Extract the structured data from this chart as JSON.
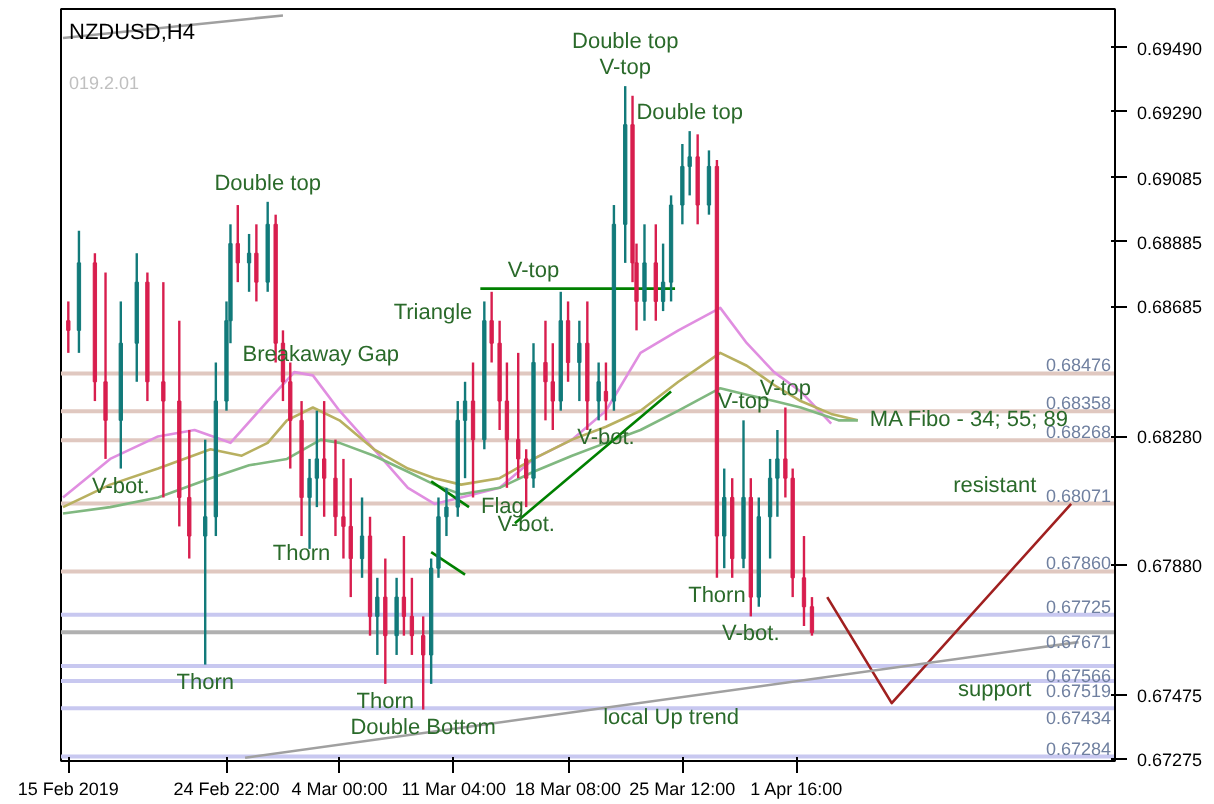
{
  "chart_data": {
    "type": "candlestick",
    "title": "NZDUSD,H4",
    "x": [
      "2019-02-15T00:00",
      "2019-02-15T16:00",
      "2019-02-16T16:00",
      "2019-02-17T08:00",
      "2019-02-18T07:00",
      "2019-02-19T07:00",
      "2019-02-19T23:00",
      "2019-02-20T23:00",
      "2019-02-21T23:00",
      "2019-02-22T14:00",
      "2019-02-23T14:00",
      "2019-02-24T06:00",
      "2019-02-24T22:00",
      "2019-02-25T04:00",
      "2019-02-25T15:00",
      "2019-02-26T08:00",
      "2019-02-26T19:00",
      "2019-02-27T12:00",
      "2019-02-28T00:00",
      "2019-02-28T11:00",
      "2019-02-28T22:00",
      "2019-03-01T15:00",
      "2019-03-02T03:00",
      "2019-03-02T14:00",
      "2019-03-03T01:00",
      "2019-03-03T18:00",
      "2019-03-04T06:00",
      "2019-03-04T17:00",
      "2019-03-05T10:00",
      "2019-03-05T22:00",
      "2019-03-06T09:00",
      "2019-03-06T21:00",
      "2019-03-07T14:00",
      "2019-03-08T01:00",
      "2019-03-08T13:00",
      "2019-03-09T06:00",
      "2019-03-09T18:00",
      "2019-03-10T05:00",
      "2019-03-10T17:00",
      "2019-03-11T10:00",
      "2019-03-11T21:00",
      "2019-03-12T09:00",
      "2019-03-13T02:00",
      "2019-03-13T13:00",
      "2019-03-14T01:00",
      "2019-03-14T12:00",
      "2019-03-15T05:00",
      "2019-03-15T17:00",
      "2019-03-16T04:00",
      "2019-03-16T22:00",
      "2019-03-17T09:00",
      "2019-03-17T21:00",
      "2019-03-18T08:00",
      "2019-03-19T01:00",
      "2019-03-19T13:00",
      "2019-03-20T06:00",
      "2019-03-20T17:00",
      "2019-03-21T05:00",
      "2019-03-21T22:00",
      "2019-03-22T09:00",
      "2019-03-22T15:00",
      "2019-03-23T03:00",
      "2019-03-23T20:00",
      "2019-03-24T07:00",
      "2019-03-24T19:00",
      "2019-03-25T12:00",
      "2019-03-25T23:00",
      "2019-03-26T11:00",
      "2019-03-27T04:00",
      "2019-03-27T16:00",
      "2019-03-28T03:00",
      "2019-03-28T15:00",
      "2019-03-29T08:00",
      "2019-03-29T19:00",
      "2019-03-30T07:00",
      "2019-03-31T00:00",
      "2019-03-31T11:00",
      "2019-03-31T23:00",
      "2019-04-01T10:00",
      "2019-04-02T03:00",
      "2019-04-02T15:00"
    ],
    "ohlc": [
      [
        0.6864,
        0.687,
        0.6854,
        0.6861
      ],
      [
        0.6861,
        0.6892,
        0.6854,
        0.6882
      ],
      [
        0.6882,
        0.6885,
        0.6839,
        0.6845
      ],
      [
        0.6845,
        0.6879,
        0.6821,
        0.6833
      ],
      [
        0.6833,
        0.687,
        0.6818,
        0.6857
      ],
      [
        0.6857,
        0.6885,
        0.6845,
        0.6876
      ],
      [
        0.6876,
        0.6879,
        0.6839,
        0.6845
      ],
      [
        0.6845,
        0.6876,
        0.6809,
        0.6839
      ],
      [
        0.6839,
        0.6864,
        0.68,
        0.6809
      ],
      [
        0.6809,
        0.683,
        0.679,
        0.6797
      ],
      [
        0.6797,
        0.6827,
        0.6757,
        0.6803
      ],
      [
        0.6803,
        0.6851,
        0.6797,
        0.6839
      ],
      [
        0.6839,
        0.687,
        0.6836,
        0.6864
      ],
      [
        0.6864,
        0.6894,
        0.6857,
        0.6888
      ],
      [
        0.6888,
        0.69,
        0.6876,
        0.6882
      ],
      [
        0.6882,
        0.6891,
        0.6873,
        0.6885
      ],
      [
        0.6885,
        0.6894,
        0.687,
        0.6876
      ],
      [
        0.6876,
        0.6901,
        0.6873,
        0.6894
      ],
      [
        0.6894,
        0.6897,
        0.6851,
        0.6857
      ],
      [
        0.6857,
        0.6861,
        0.6839,
        0.6845
      ],
      [
        0.6845,
        0.6851,
        0.6818,
        0.6833
      ],
      [
        0.6833,
        0.6839,
        0.6797,
        0.6809
      ],
      [
        0.6809,
        0.6821,
        0.6793,
        0.6815
      ],
      [
        0.6815,
        0.6836,
        0.6806,
        0.6821
      ],
      [
        0.6821,
        0.6839,
        0.6803,
        0.6815
      ],
      [
        0.6815,
        0.6827,
        0.6797,
        0.6803
      ],
      [
        0.6803,
        0.6821,
        0.679,
        0.68
      ],
      [
        0.68,
        0.6815,
        0.6778,
        0.679
      ],
      [
        0.679,
        0.6809,
        0.6784,
        0.6797
      ],
      [
        0.6797,
        0.6803,
        0.6766,
        0.6772
      ],
      [
        0.6772,
        0.6784,
        0.676,
        0.6778
      ],
      [
        0.6778,
        0.679,
        0.6751,
        0.6766
      ],
      [
        0.6766,
        0.6784,
        0.676,
        0.6778
      ],
      [
        0.6778,
        0.6797,
        0.6766,
        0.6772
      ],
      [
        0.6772,
        0.6784,
        0.676,
        0.6766
      ],
      [
        0.6766,
        0.6772,
        0.6743,
        0.676
      ],
      [
        0.676,
        0.679,
        0.6751,
        0.6787
      ],
      [
        0.6787,
        0.6809,
        0.6784,
        0.6803
      ],
      [
        0.6803,
        0.6812,
        0.6797,
        0.6806
      ],
      [
        0.6806,
        0.6839,
        0.6803,
        0.6833
      ],
      [
        0.6833,
        0.6845,
        0.6815,
        0.6839
      ],
      [
        0.6839,
        0.6851,
        0.6809,
        0.6827
      ],
      [
        0.6827,
        0.687,
        0.6824,
        0.6864
      ],
      [
        0.6864,
        0.6873,
        0.6851,
        0.6857
      ],
      [
        0.6857,
        0.6864,
        0.683,
        0.6839
      ],
      [
        0.6839,
        0.6851,
        0.6812,
        0.6827
      ],
      [
        0.6827,
        0.6854,
        0.6815,
        0.6821
      ],
      [
        0.6821,
        0.6824,
        0.6806,
        0.6815
      ],
      [
        0.6815,
        0.6857,
        0.6812,
        0.6851
      ],
      [
        0.6851,
        0.6864,
        0.6833,
        0.6845
      ],
      [
        0.6845,
        0.6857,
        0.683,
        0.6839
      ],
      [
        0.6839,
        0.6873,
        0.6836,
        0.6864
      ],
      [
        0.6864,
        0.687,
        0.6845,
        0.6851
      ],
      [
        0.6851,
        0.6864,
        0.6839,
        0.6857
      ],
      [
        0.6857,
        0.687,
        0.683,
        0.6839
      ],
      [
        0.6839,
        0.6851,
        0.6833,
        0.6845
      ],
      [
        0.6842,
        0.6851,
        0.6833,
        0.6839
      ],
      [
        0.6839,
        0.69,
        0.6836,
        0.6894
      ],
      [
        0.6894,
        0.6937,
        0.6882,
        0.6925
      ],
      [
        0.6925,
        0.6934,
        0.6876,
        0.6882
      ],
      [
        0.6882,
        0.6888,
        0.6861,
        0.687
      ],
      [
        0.687,
        0.6894,
        0.6864,
        0.6882
      ],
      [
        0.6882,
        0.6894,
        0.6864,
        0.687
      ],
      [
        0.687,
        0.6888,
        0.6867,
        0.6876
      ],
      [
        0.6876,
        0.6903,
        0.687,
        0.69
      ],
      [
        0.69,
        0.6919,
        0.6894,
        0.6912
      ],
      [
        0.6912,
        0.6923,
        0.6903,
        0.6915
      ],
      [
        0.6915,
        0.6922,
        0.6894,
        0.69
      ],
      [
        0.69,
        0.6917,
        0.6897,
        0.6912
      ],
      [
        0.6912,
        0.6914,
        0.6784,
        0.6797
      ],
      [
        0.6797,
        0.6818,
        0.6787,
        0.6809
      ],
      [
        0.6809,
        0.6815,
        0.6784,
        0.679
      ],
      [
        0.679,
        0.6833,
        0.6787,
        0.6809
      ],
      [
        0.6809,
        0.6815,
        0.6772,
        0.6778
      ],
      [
        0.6778,
        0.6809,
        0.6775,
        0.6803
      ],
      [
        0.6803,
        0.6821,
        0.679,
        0.6815
      ],
      [
        0.6815,
        0.683,
        0.6803,
        0.6821
      ],
      [
        0.6821,
        0.6837,
        0.6809,
        0.6815
      ],
      [
        0.6815,
        0.6818,
        0.6778,
        0.6784
      ],
      [
        0.6784,
        0.6797,
        0.6769,
        0.6775
      ],
      [
        0.6775,
        0.6778,
        0.6766,
        0.6767
      ]
    ],
    "colors": [
      "#d81e4e",
      "#127a7a",
      "#d81e4e",
      "#d81e4e",
      "#127a7a",
      "#127a7a",
      "#d81e4e",
      "#d81e4e",
      "#d81e4e",
      "#d81e4e",
      "#127a7a",
      "#127a7a",
      "#127a7a",
      "#127a7a",
      "#d81e4e",
      "#127a7a",
      "#d81e4e",
      "#127a7a",
      "#d81e4e",
      "#d81e4e",
      "#d81e4e",
      "#d81e4e",
      "#127a7a",
      "#127a7a",
      "#d81e4e",
      "#d81e4e",
      "#d81e4e",
      "#d81e4e",
      "#127a7a",
      "#d81e4e",
      "#127a7a",
      "#d81e4e",
      "#127a7a",
      "#d81e4e",
      "#d81e4e",
      "#d81e4e",
      "#127a7a",
      "#127a7a",
      "#127a7a",
      "#127a7a",
      "#127a7a",
      "#d81e4e",
      "#127a7a",
      "#d81e4e",
      "#d81e4e",
      "#d81e4e",
      "#d81e4e",
      "#d81e4e",
      "#127a7a",
      "#d81e4e",
      "#d81e4e",
      "#127a7a",
      "#d81e4e",
      "#127a7a",
      "#d81e4e",
      "#127a7a",
      "#d81e4e",
      "#127a7a",
      "#127a7a",
      "#d81e4e",
      "#d81e4e",
      "#127a7a",
      "#d81e4e",
      "#127a7a",
      "#127a7a",
      "#127a7a",
      "#127a7a",
      "#d81e4e",
      "#127a7a",
      "#d81e4e",
      "#127a7a",
      "#d81e4e",
      "#127a7a",
      "#d81e4e",
      "#127a7a",
      "#127a7a",
      "#127a7a",
      "#d81e4e",
      "#d81e4e",
      "#d81e4e",
      "#d81e4e"
    ],
    "series": [
      {
        "type": "line",
        "color": "#e08ee0",
        "x": [
          "2019-02-14T16:00",
          "2019-02-17T15:00",
          "2019-02-20T15:00",
          "2019-02-22T22:00",
          "2019-02-25T04:00",
          "2019-02-27T12:00",
          "2019-03-01T04:00",
          "2019-03-02T08:00",
          "2019-03-04T00:00",
          "2019-03-06T04:00",
          "2019-03-08T07:00",
          "2019-03-09T23:00",
          "2019-03-11T15:00",
          "2019-03-14T01:00",
          "2019-03-16T04:00",
          "2019-03-18T14:00",
          "2019-03-20T17:00",
          "2019-03-22T21:00",
          "2019-03-25T06:00",
          "2019-03-27T21:00",
          "2019-03-29T13:00",
          "2019-03-31T06:00",
          "2019-04-01T22:00",
          "2019-04-03T20:00"
        ],
        "values": [
          0.6809,
          0.6821,
          0.6828,
          0.683,
          0.6826,
          0.6839,
          0.6848,
          0.6847,
          0.6836,
          0.6824,
          0.6812,
          0.6807,
          0.6809,
          0.6812,
          0.6821,
          0.6827,
          0.6836,
          0.6854,
          0.6861,
          0.6868,
          0.6857,
          0.6848,
          0.6842,
          0.6832
        ]
      },
      {
        "type": "line",
        "color": "#b8b060",
        "x": [
          "2019-02-14T16:00",
          "2019-02-17T15:00",
          "2019-02-20T15:00",
          "2019-02-23T22:00",
          "2019-02-25T21:00",
          "2019-02-27T12:00",
          "2019-02-28T17:00",
          "2019-03-02T08:00",
          "2019-03-04T00:00",
          "2019-03-06T04:00",
          "2019-03-08T07:00",
          "2019-03-09T23:00",
          "2019-03-11T15:00",
          "2019-03-14T01:00",
          "2019-03-16T04:00",
          "2019-03-18T14:00",
          "2019-03-20T17:00",
          "2019-03-22T21:00",
          "2019-03-25T06:00",
          "2019-03-27T21:00",
          "2019-03-29T13:00",
          "2019-03-31T06:00",
          "2019-04-01T22:00",
          "2019-04-03T20:00",
          "2019-04-05T12:00"
        ],
        "values": [
          0.6806,
          0.6813,
          0.6818,
          0.6824,
          0.6822,
          0.6826,
          0.6833,
          0.6837,
          0.6833,
          0.6824,
          0.6818,
          0.6815,
          0.6813,
          0.6815,
          0.6821,
          0.6827,
          0.6831,
          0.6836,
          0.6845,
          0.6854,
          0.685,
          0.6844,
          0.6839,
          0.6835,
          0.6833
        ]
      },
      {
        "type": "line",
        "color": "#80b880",
        "x": [
          "2019-02-14T16:00",
          "2019-02-17T15:00",
          "2019-02-20T15:00",
          "2019-02-23T22:00",
          "2019-02-26T08:00",
          "2019-02-28T17:00",
          "2019-03-02T20:00",
          "2019-03-04T00:00",
          "2019-03-06T04:00",
          "2019-03-08T07:00",
          "2019-03-09T23:00",
          "2019-03-11T15:00",
          "2019-03-14T01:00",
          "2019-03-16T04:00",
          "2019-03-18T14:00",
          "2019-03-20T17:00",
          "2019-03-22T21:00",
          "2019-03-25T06:00",
          "2019-03-27T21:00",
          "2019-03-29T13:00",
          "2019-03-31T06:00",
          "2019-04-01T22:00",
          "2019-04-04T07:00",
          "2019-04-05T12:00"
        ],
        "values": [
          0.6804,
          0.6806,
          0.6809,
          0.6815,
          0.6819,
          0.6821,
          0.6827,
          0.6826,
          0.6822,
          0.6817,
          0.6813,
          0.681,
          0.6812,
          0.6817,
          0.6822,
          0.6826,
          0.683,
          0.6836,
          0.6843,
          0.6841,
          0.6839,
          0.6837,
          0.6833,
          0.6833
        ]
      },
      {
        "type": "line",
        "color": "#008000",
        "x": [
          "2019-03-12T20:00",
          "2019-03-25T01:00"
        ],
        "values": [
          0.6874,
          0.6874
        ]
      },
      {
        "type": "line",
        "color": "#008000",
        "x": [
          "2019-03-15T00:00",
          "2019-03-24T19:00"
        ],
        "values": [
          0.6801,
          0.6842
        ]
      },
      {
        "type": "line",
        "color": "#008000",
        "x": [
          "2019-03-09T18:00",
          "2019-03-12T03:00"
        ],
        "values": [
          0.6814,
          0.6806
        ]
      },
      {
        "type": "line",
        "color": "#008000",
        "x": [
          "2019-03-09T18:00",
          "2019-03-11T21:00"
        ],
        "values": [
          0.6792,
          0.6785
        ]
      },
      {
        "type": "line",
        "color": "#a02020",
        "x": [
          "2019-04-03T14:00",
          "2019-04-07T15:00",
          "2019-04-18T21:00"
        ],
        "values": [
          0.6778,
          0.6745,
          0.6807
        ]
      },
      {
        "type": "line",
        "color": "#a0a0a0",
        "x": [
          "2019-02-26T02:00",
          "2019-04-19T08:00"
        ],
        "values": [
          0.6728,
          0.6764
        ]
      },
      {
        "type": "line",
        "color": "#a0a0a0",
        "x": [
          "2019-02-14T16:00",
          "2019-02-28T11:00"
        ],
        "values": [
          0.6952,
          0.6959
        ]
      }
    ],
    "xlim": [
      "2019-02-14T13:00",
      "2019-04-21T15:00"
    ],
    "ylim": [
      0.6727,
      0.6961
    ],
    "xticks": [
      {
        "value": "2019-02-15",
        "label": "15 Feb 2019"
      },
      {
        "value": "2019-02-24T22:00",
        "label": "24 Feb 22:00"
      },
      {
        "value": "2019-03-04T00:00",
        "label": "4 Mar 00:00"
      },
      {
        "value": "2019-03-11T04:00",
        "label": "11 Mar 04:00"
      },
      {
        "value": "2019-03-18T08:00",
        "label": "18 Mar 08:00"
      },
      {
        "value": "2019-03-25T12:00",
        "label": "25 Mar 12:00"
      },
      {
        "value": "2019-04-01T16:00",
        "label": "1 Apr 16:00"
      }
    ],
    "yticks": [
      {
        "value": 0.6949,
        "label": "0.69490"
      },
      {
        "value": 0.6929,
        "label": "0.69290"
      },
      {
        "value": 0.69085,
        "label": "0.69085"
      },
      {
        "value": 0.68885,
        "label": "0.68885"
      },
      {
        "value": 0.68685,
        "label": "0.68685"
      },
      {
        "value": 0.6828,
        "label": "0.68280"
      },
      {
        "value": 0.6788,
        "label": "0.67880"
      },
      {
        "value": 0.67475,
        "label": "0.67475"
      },
      {
        "value": 0.67275,
        "label": "0.67275"
      }
    ],
    "ref_lines": [
      {
        "axis": "y",
        "value": 0.68476,
        "label": "0.68476",
        "color": "#e0c8c0"
      },
      {
        "axis": "y",
        "value": 0.68358,
        "label": "0.68358",
        "color": "#e0c8c0"
      },
      {
        "axis": "y",
        "value": 0.68268,
        "label": "0.68268",
        "color": "#e0c8c0"
      },
      {
        "axis": "y",
        "value": 0.68071,
        "label": "0.68071",
        "color": "#e0c8c0"
      },
      {
        "axis": "y",
        "value": 0.6786,
        "label": "0.67860",
        "color": "#e0c8c0"
      },
      {
        "axis": "y",
        "value": 0.67725,
        "label": "0.67725",
        "color": "#c8c8f0"
      },
      {
        "axis": "y",
        "value": 0.67671,
        "label": "0.67671",
        "color": "#b0b0b0"
      },
      {
        "axis": "y",
        "value": 0.67566,
        "label": "0.67566",
        "color": "#c8c8f0"
      },
      {
        "axis": "y",
        "value": 0.67519,
        "label": "0.67519",
        "color": "#c8c8f0"
      },
      {
        "axis": "y",
        "value": 0.67434,
        "label": "0.67434",
        "color": "#c8c8f0"
      },
      {
        "axis": "y",
        "value": 0.67284,
        "label": "0.67284",
        "color": "#c8c8f0"
      }
    ],
    "annotations": [
      "019.2.01",
      {
        "text": "Double top",
        "x": "2019-02-27T12:00",
        "y": 0.6901
      },
      {
        "text": "V-top",
        "x": "2019-03-21T22:00",
        "y": 0.6937
      },
      {
        "text": "Double top",
        "x": "2019-03-21T22:00",
        "y": 0.6937
      },
      {
        "text": "Double top",
        "x": "2019-03-25T23:00",
        "y": 0.6923
      },
      {
        "text": "V-top",
        "x": "2019-03-16T04:00",
        "y": 0.6874
      },
      {
        "text": "V-top",
        "x": "2019-03-29T08:00",
        "y": 0.6833
      },
      {
        "text": "V-top",
        "x": "2019-03-31T23:00",
        "y": 0.6837
      },
      {
        "text": "Triangle",
        "x": "2019-03-12T20:00",
        "y": 0.6874
      },
      {
        "text": "Breakaway Gap",
        "x": "2019-03-02T20:00",
        "y": 0.68476
      },
      {
        "text": "V-bot.",
        "x": "2019-02-18T07:00",
        "y": 0.6818
      },
      {
        "text": "Thorn",
        "x": "2019-03-01T15:00",
        "y": 0.6797
      },
      {
        "text": "Flag",
        "x": "2019-03-12T03:00",
        "y": 0.6806
      },
      {
        "text": "V-bot.",
        "x": "2019-03-15T17:00",
        "y": 0.6806
      },
      {
        "text": "V-bot.",
        "x": "2019-03-20T17:00",
        "y": 0.6833
      },
      {
        "text": "Thorn",
        "x": "2019-02-23T14:00",
        "y": 0.6757
      },
      {
        "text": "Thorn",
        "x": "2019-03-06T21:00",
        "y": 0.6751
      },
      {
        "text": "Double Bottom",
        "x": "2019-03-09T06:00",
        "y": 0.6743
      },
      {
        "text": "local Up trend",
        "x": "2019-03-24T19:00",
        "y": 0.6746
      },
      {
        "text": "Thorn",
        "x": "2019-03-27T16:00",
        "y": 0.6784
      },
      {
        "text": "V-bot.",
        "x": "2019-03-29T19:00",
        "y": 0.6772
      },
      {
        "text": "MA Fibo - 34; 55; 89",
        "x": "2019-04-05T12:00",
        "y": 0.6833
      },
      {
        "text": "resistant",
        "x": "2019-04-14T02:00",
        "y": 0.68071
      },
      {
        "text": "support",
        "x": "2019-04-14T02:00",
        "y": 0.67434
      }
    ]
  }
}
